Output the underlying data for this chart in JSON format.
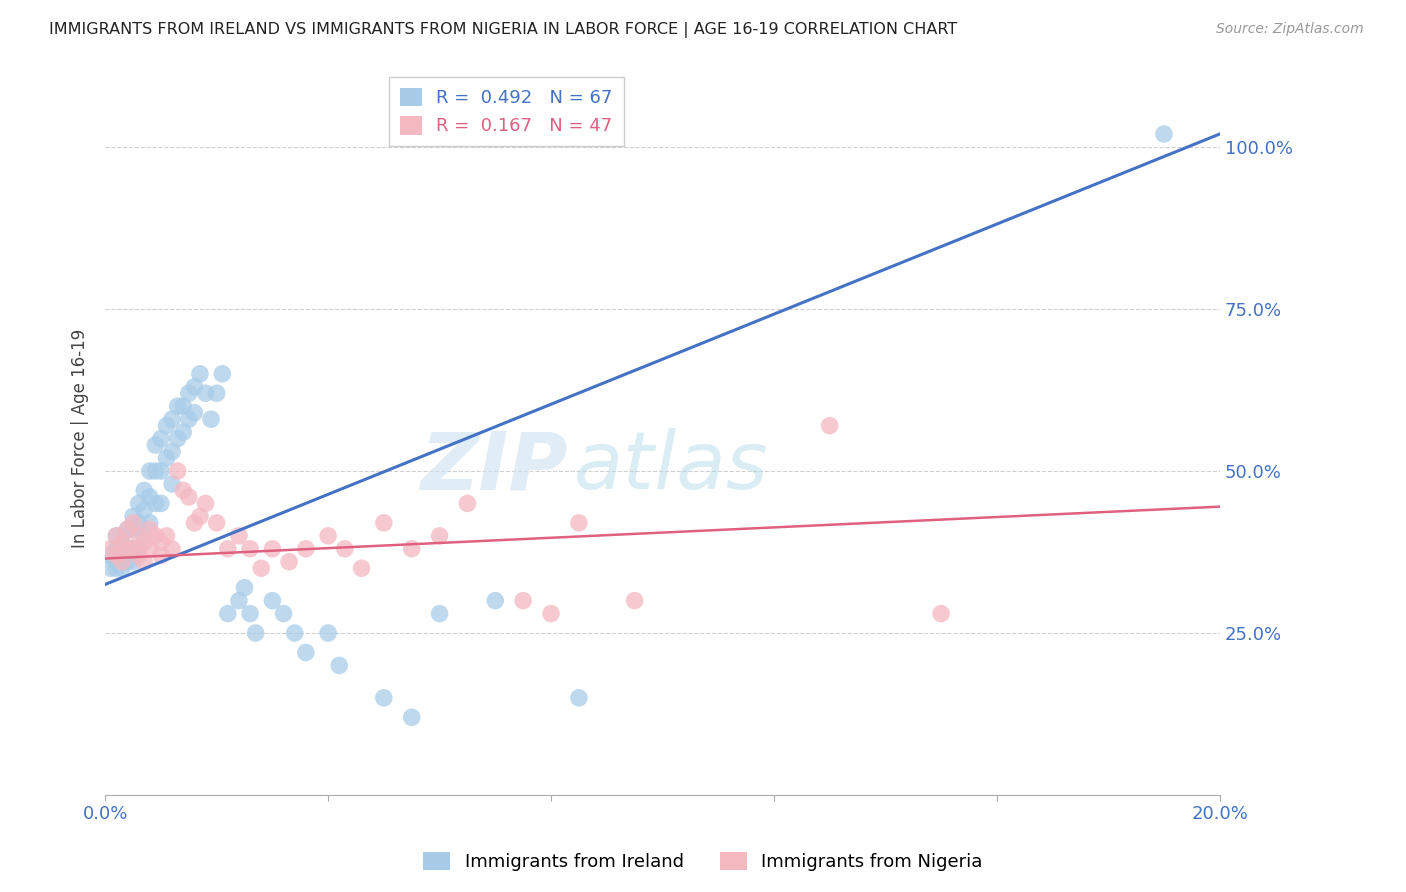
{
  "title": "IMMIGRANTS FROM IRELAND VS IMMIGRANTS FROM NIGERIA IN LABOR FORCE | AGE 16-19 CORRELATION CHART",
  "source": "Source: ZipAtlas.com",
  "ylabel_label": "In Labor Force | Age 16-19",
  "x_min": 0.0,
  "x_max": 0.2,
  "y_min": 0.0,
  "y_max": 1.1,
  "x_ticks": [
    0.0,
    0.04,
    0.08,
    0.12,
    0.16,
    0.2
  ],
  "x_tick_labels": [
    "0.0%",
    "",
    "",
    "",
    "",
    "20.0%"
  ],
  "y_ticks": [
    0.25,
    0.5,
    0.75,
    1.0
  ],
  "y_tick_labels": [
    "25.0%",
    "50.0%",
    "75.0%",
    "100.0%"
  ],
  "ireland_color": "#a8cce8",
  "nigeria_color": "#f4b8c1",
  "ireland_line_color": "#4472c4",
  "nigeria_line_color": "#e06080",
  "ireland_R": 0.492,
  "ireland_N": 67,
  "nigeria_R": 0.167,
  "nigeria_N": 47,
  "ireland_scatter_x": [
    0.001,
    0.001,
    0.002,
    0.002,
    0.002,
    0.002,
    0.003,
    0.003,
    0.003,
    0.003,
    0.004,
    0.004,
    0.004,
    0.005,
    0.005,
    0.005,
    0.005,
    0.006,
    0.006,
    0.006,
    0.007,
    0.007,
    0.007,
    0.008,
    0.008,
    0.008,
    0.009,
    0.009,
    0.009,
    0.01,
    0.01,
    0.01,
    0.011,
    0.011,
    0.012,
    0.012,
    0.012,
    0.013,
    0.013,
    0.014,
    0.014,
    0.015,
    0.015,
    0.016,
    0.016,
    0.017,
    0.018,
    0.019,
    0.02,
    0.021,
    0.022,
    0.024,
    0.025,
    0.026,
    0.027,
    0.03,
    0.032,
    0.034,
    0.036,
    0.04,
    0.042,
    0.05,
    0.055,
    0.06,
    0.07,
    0.085,
    0.19
  ],
  "ireland_scatter_y": [
    0.37,
    0.35,
    0.4,
    0.38,
    0.36,
    0.35,
    0.39,
    0.37,
    0.36,
    0.35,
    0.41,
    0.38,
    0.36,
    0.43,
    0.41,
    0.38,
    0.36,
    0.45,
    0.42,
    0.38,
    0.47,
    0.44,
    0.4,
    0.5,
    0.46,
    0.42,
    0.54,
    0.5,
    0.45,
    0.55,
    0.5,
    0.45,
    0.57,
    0.52,
    0.58,
    0.53,
    0.48,
    0.6,
    0.55,
    0.6,
    0.56,
    0.62,
    0.58,
    0.63,
    0.59,
    0.65,
    0.62,
    0.58,
    0.62,
    0.65,
    0.28,
    0.3,
    0.32,
    0.28,
    0.25,
    0.3,
    0.28,
    0.25,
    0.22,
    0.25,
    0.2,
    0.15,
    0.12,
    0.28,
    0.3,
    0.15,
    1.02
  ],
  "nigeria_scatter_x": [
    0.001,
    0.002,
    0.002,
    0.003,
    0.003,
    0.004,
    0.004,
    0.005,
    0.005,
    0.006,
    0.006,
    0.007,
    0.007,
    0.008,
    0.008,
    0.009,
    0.01,
    0.01,
    0.011,
    0.012,
    0.013,
    0.014,
    0.015,
    0.016,
    0.017,
    0.018,
    0.02,
    0.022,
    0.024,
    0.026,
    0.028,
    0.03,
    0.033,
    0.036,
    0.04,
    0.043,
    0.046,
    0.05,
    0.055,
    0.06,
    0.065,
    0.075,
    0.08,
    0.085,
    0.095,
    0.13,
    0.15
  ],
  "nigeria_scatter_y": [
    0.38,
    0.4,
    0.37,
    0.39,
    0.36,
    0.41,
    0.38,
    0.42,
    0.38,
    0.4,
    0.37,
    0.39,
    0.36,
    0.41,
    0.38,
    0.4,
    0.39,
    0.37,
    0.4,
    0.38,
    0.5,
    0.47,
    0.46,
    0.42,
    0.43,
    0.45,
    0.42,
    0.38,
    0.4,
    0.38,
    0.35,
    0.38,
    0.36,
    0.38,
    0.4,
    0.38,
    0.35,
    0.42,
    0.38,
    0.4,
    0.45,
    0.3,
    0.28,
    0.42,
    0.3,
    0.57,
    0.28
  ],
  "ireland_trend_x": [
    0.0,
    0.2
  ],
  "ireland_trend_y": [
    0.325,
    1.02
  ],
  "nigeria_trend_x": [
    0.0,
    0.2
  ],
  "nigeria_trend_y": [
    0.365,
    0.445
  ],
  "watermark_text": "ZIP",
  "watermark_text2": "atlas",
  "background_color": "#ffffff",
  "grid_color": "#d0d0d0"
}
